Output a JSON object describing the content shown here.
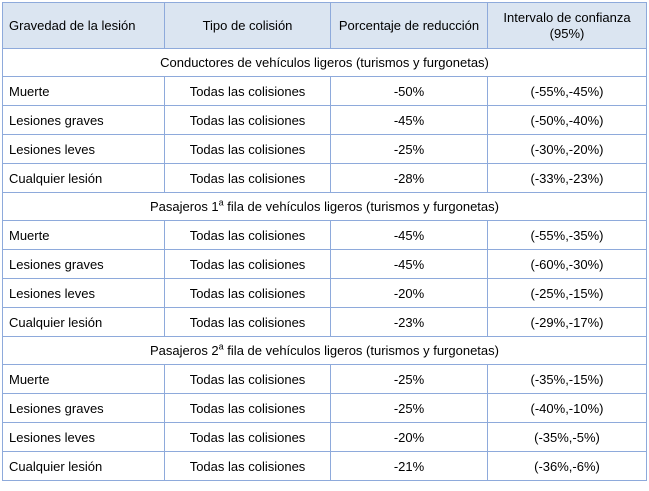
{
  "headers": [
    "Gravedad de la lesión",
    "Tipo de colisión",
    "Porcentaje de reducción",
    "Intervalo de confianza (95%)"
  ],
  "groups": [
    {
      "title_pre": "Conductores de vehículos ligeros (turismos y furgonetas)",
      "ordinal": "",
      "title_post": "",
      "rows": [
        {
          "severity": "Muerte",
          "type": "Todas las colisiones",
          "reduction": "-50%",
          "ci": "(-55%,-45%)"
        },
        {
          "severity": "Lesiones graves",
          "type": "Todas las colisiones",
          "reduction": "-45%",
          "ci": "(-50%,-40%)"
        },
        {
          "severity": "Lesiones leves",
          "type": "Todas las colisiones",
          "reduction": "-25%",
          "ci": "(-30%,-20%)"
        },
        {
          "severity": "Cualquier lesión",
          "type": "Todas las colisiones",
          "reduction": "-28%",
          "ci": "(-33%,-23%)"
        }
      ]
    },
    {
      "title_pre": "Pasajeros 1",
      "ordinal": "a",
      "title_post": " fila de vehículos ligeros (turismos y furgonetas)",
      "rows": [
        {
          "severity": "Muerte",
          "type": "Todas las colisiones",
          "reduction": "-45%",
          "ci": "(-55%,-35%)"
        },
        {
          "severity": "Lesiones graves",
          "type": "Todas las colisiones",
          "reduction": "-45%",
          "ci": "(-60%,-30%)"
        },
        {
          "severity": "Lesiones leves",
          "type": "Todas las colisiones",
          "reduction": "-20%",
          "ci": "(-25%,-15%)"
        },
        {
          "severity": "Cualquier lesión",
          "type": "Todas las colisiones",
          "reduction": "-23%",
          "ci": "(-29%,-17%)"
        }
      ]
    },
    {
      "title_pre": "Pasajeros 2",
      "ordinal": "a",
      "title_post": " fila de vehículos ligeros (turismos y furgonetas)",
      "rows": [
        {
          "severity": "Muerte",
          "type": "Todas las colisiones",
          "reduction": "-25%",
          "ci": "(-35%,-15%)"
        },
        {
          "severity": "Lesiones graves",
          "type": "Todas las colisiones",
          "reduction": "-25%",
          "ci": "(-40%,-10%)"
        },
        {
          "severity": "Lesiones leves",
          "type": "Todas las colisiones",
          "reduction": "-20%",
          "ci": "(-35%,-5%)"
        },
        {
          "severity": "Cualquier lesión",
          "type": "Todas las colisiones",
          "reduction": "-21%",
          "ci": "(-36%,-6%)"
        }
      ]
    }
  ]
}
